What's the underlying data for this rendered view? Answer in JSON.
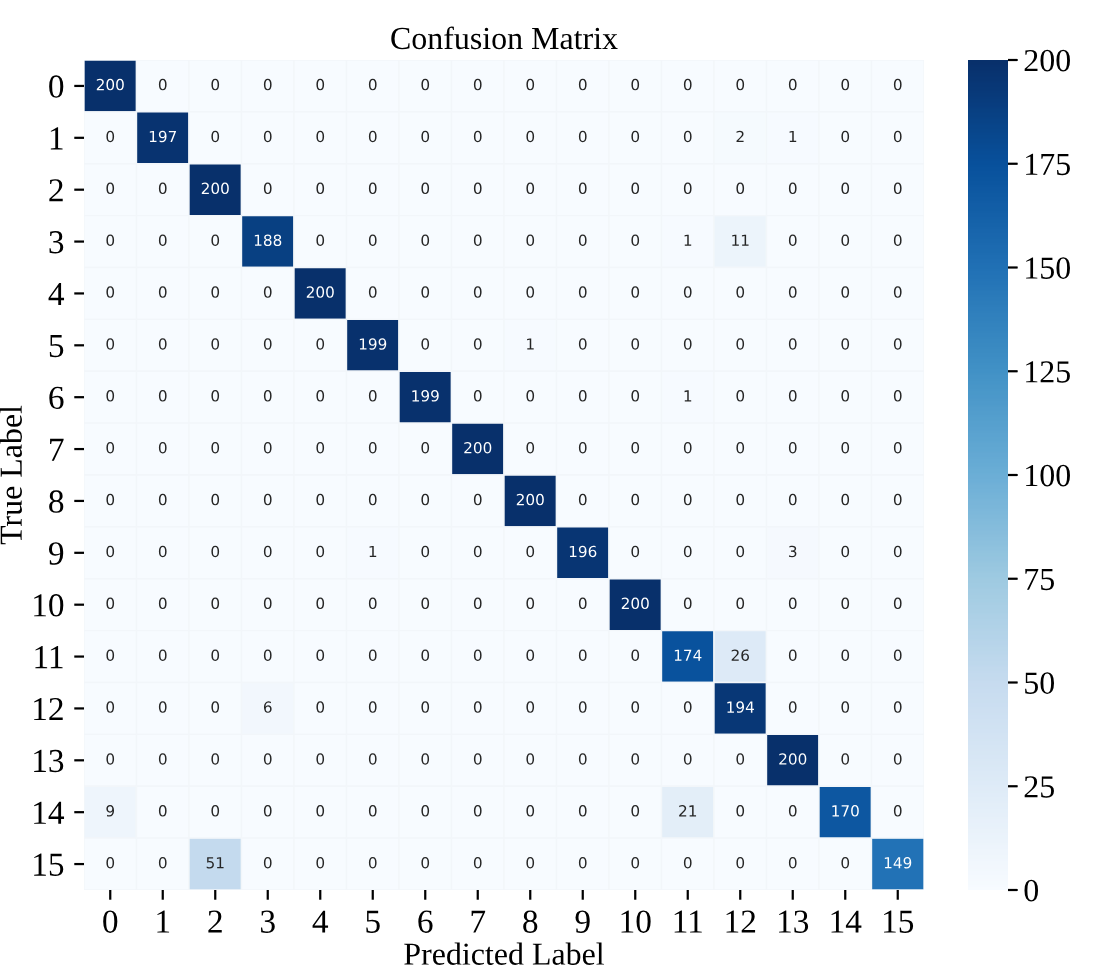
{
  "chart_data": {
    "type": "heatmap",
    "title": "Confusion Matrix",
    "xlabel": "Predicted Label",
    "ylabel": "True Label",
    "categories": [
      "0",
      "1",
      "2",
      "3",
      "4",
      "5",
      "6",
      "7",
      "8",
      "9",
      "10",
      "11",
      "12",
      "13",
      "14",
      "15"
    ],
    "y_categories": [
      "0",
      "1",
      "2",
      "3",
      "4",
      "5",
      "6",
      "7",
      "8",
      "9",
      "10",
      "11",
      "12",
      "13",
      "14",
      "15"
    ],
    "cells": [
      [
        200,
        0,
        0,
        0,
        0,
        0,
        0,
        0,
        0,
        0,
        0,
        0,
        0,
        0,
        0,
        0
      ],
      [
        0,
        197,
        0,
        0,
        0,
        0,
        0,
        0,
        0,
        0,
        0,
        0,
        2,
        1,
        0,
        0
      ],
      [
        0,
        0,
        200,
        0,
        0,
        0,
        0,
        0,
        0,
        0,
        0,
        0,
        0,
        0,
        0,
        0
      ],
      [
        0,
        0,
        0,
        188,
        0,
        0,
        0,
        0,
        0,
        0,
        0,
        1,
        11,
        0,
        0,
        0
      ],
      [
        0,
        0,
        0,
        0,
        200,
        0,
        0,
        0,
        0,
        0,
        0,
        0,
        0,
        0,
        0,
        0
      ],
      [
        0,
        0,
        0,
        0,
        0,
        199,
        0,
        0,
        1,
        0,
        0,
        0,
        0,
        0,
        0,
        0
      ],
      [
        0,
        0,
        0,
        0,
        0,
        0,
        199,
        0,
        0,
        0,
        0,
        1,
        0,
        0,
        0,
        0
      ],
      [
        0,
        0,
        0,
        0,
        0,
        0,
        0,
        200,
        0,
        0,
        0,
        0,
        0,
        0,
        0,
        0
      ],
      [
        0,
        0,
        0,
        0,
        0,
        0,
        0,
        0,
        200,
        0,
        0,
        0,
        0,
        0,
        0,
        0
      ],
      [
        0,
        0,
        0,
        0,
        0,
        1,
        0,
        0,
        0,
        196,
        0,
        0,
        0,
        3,
        0,
        0
      ],
      [
        0,
        0,
        0,
        0,
        0,
        0,
        0,
        0,
        0,
        0,
        200,
        0,
        0,
        0,
        0,
        0
      ],
      [
        0,
        0,
        0,
        0,
        0,
        0,
        0,
        0,
        0,
        0,
        0,
        174,
        26,
        0,
        0,
        0
      ],
      [
        0,
        0,
        0,
        6,
        0,
        0,
        0,
        0,
        0,
        0,
        0,
        0,
        194,
        0,
        0,
        0
      ],
      [
        0,
        0,
        0,
        0,
        0,
        0,
        0,
        0,
        0,
        0,
        0,
        0,
        0,
        200,
        0,
        0
      ],
      [
        9,
        0,
        0,
        0,
        0,
        0,
        0,
        0,
        0,
        0,
        0,
        21,
        0,
        0,
        170,
        0
      ],
      [
        0,
        0,
        51,
        0,
        0,
        0,
        0,
        0,
        0,
        0,
        0,
        0,
        0,
        0,
        0,
        149
      ]
    ],
    "data_labels": true,
    "clim": [
      0,
      200
    ],
    "cticks": [
      0,
      25,
      50,
      75,
      100,
      125,
      150,
      175,
      200
    ]
  }
}
